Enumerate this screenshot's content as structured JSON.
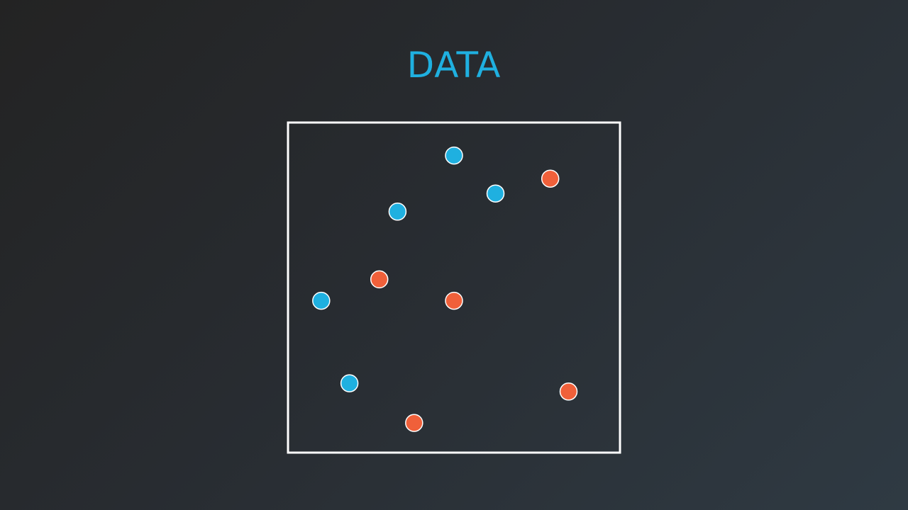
{
  "title": "DATA",
  "colors": {
    "title": "#1fb0e0",
    "frame": "#ffffff",
    "point_outline": "#ffffff"
  },
  "chart_data": {
    "type": "scatter",
    "title": "DATA",
    "xlabel": "",
    "ylabel": "",
    "xlim": [
      0,
      100
    ],
    "ylim": [
      0,
      100
    ],
    "grid": false,
    "axes_ticks": false,
    "series": [
      {
        "color": "#1fb0e0",
        "points": [
          {
            "x": 50,
            "y": 90
          },
          {
            "x": 62.5,
            "y": 78.5
          },
          {
            "x": 33,
            "y": 73
          },
          {
            "x": 10,
            "y": 46
          },
          {
            "x": 18.5,
            "y": 21
          }
        ]
      },
      {
        "color": "#f0603a",
        "points": [
          {
            "x": 79,
            "y": 83
          },
          {
            "x": 27.5,
            "y": 52.5
          },
          {
            "x": 50,
            "y": 46
          },
          {
            "x": 84.5,
            "y": 18.5
          },
          {
            "x": 38,
            "y": 9
          }
        ]
      }
    ]
  }
}
